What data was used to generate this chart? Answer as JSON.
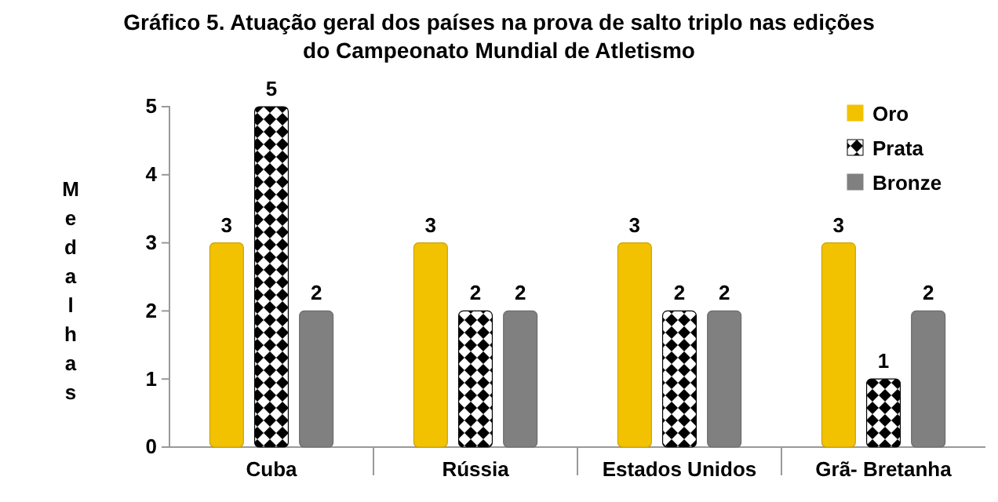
{
  "chart_data": {
    "type": "bar",
    "title": "Gráfico 5. Atuação geral dos países na prova de salto triplo  nas edições\ndo Campeonato Mundial de Atletismo",
    "ylabel": "Medalhas",
    "categories": [
      "Cuba",
      "Rússia",
      "Estados Unidos",
      "Grã- Bretanha"
    ],
    "series": [
      {
        "name": "Oro",
        "color": "#f2c200",
        "values": [
          3,
          3,
          3,
          3
        ]
      },
      {
        "name": "Prata",
        "color": "#000000",
        "values": [
          5,
          2,
          2,
          1
        ]
      },
      {
        "name": "Bronze",
        "color": "#808080",
        "values": [
          2,
          2,
          2,
          2
        ]
      }
    ],
    "ylim": [
      0,
      5
    ],
    "yticks": [
      0,
      1,
      2,
      3,
      4,
      5
    ],
    "data_labels": true,
    "legend": "top right"
  }
}
